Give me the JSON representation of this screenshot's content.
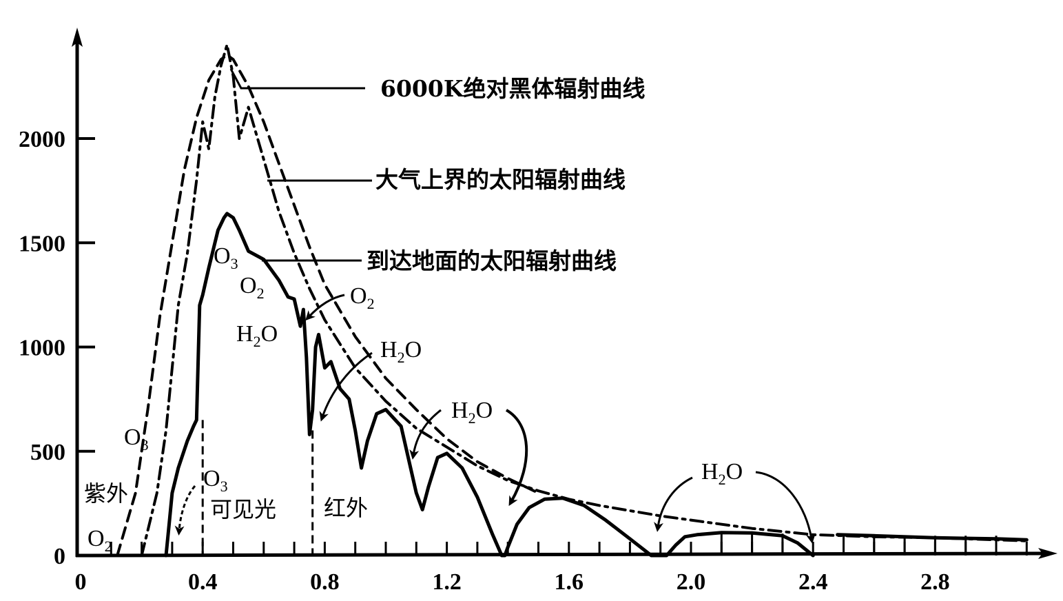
{
  "chart_data": {
    "type": "line",
    "title": "",
    "xlabel": "",
    "ylabel": "",
    "xlim": [
      0,
      3.2
    ],
    "ylim": [
      0,
      2400
    ],
    "grid": false,
    "x_ticks": [
      0,
      0.4,
      0.8,
      1.2,
      1.6,
      2.0,
      2.4,
      2.8
    ],
    "x_tick_labels": [
      "0",
      "0.4",
      "0.8",
      "1.2",
      "1.6",
      "2.0",
      "2.4",
      "2.8"
    ],
    "x_minor_tick_step": 0.1,
    "y_ticks": [
      0,
      500,
      1000,
      1500,
      2000
    ],
    "y_tick_labels": [
      "0",
      "500",
      "1000",
      "1500",
      "2000"
    ],
    "legend_position": "inline-right-labels",
    "series": [
      {
        "name": "6000K绝对黑体辐射曲线",
        "style": "dashed",
        "x": [
          0.12,
          0.18,
          0.22,
          0.26,
          0.3,
          0.34,
          0.38,
          0.42,
          0.46,
          0.48,
          0.5,
          0.55,
          0.6,
          0.65,
          0.7,
          0.75,
          0.8,
          0.9,
          1.0,
          1.1,
          1.2,
          1.3,
          1.4,
          1.5
        ],
        "y": [
          0,
          300,
          700,
          1150,
          1500,
          1850,
          2100,
          2280,
          2380,
          2400,
          2380,
          2250,
          2080,
          1880,
          1680,
          1480,
          1300,
          1050,
          850,
          700,
          560,
          450,
          370,
          300
        ]
      },
      {
        "name": "大气上界的太阳辐射曲线",
        "style": "dashdot",
        "x": [
          0.2,
          0.25,
          0.28,
          0.3,
          0.32,
          0.35,
          0.38,
          0.4,
          0.42,
          0.44,
          0.46,
          0.48,
          0.5,
          0.52,
          0.55,
          0.6,
          0.65,
          0.7,
          0.75,
          0.8,
          0.9,
          1.0,
          1.1,
          1.2,
          1.3,
          1.4,
          1.5,
          1.6,
          1.7,
          1.8,
          1.9,
          2.0,
          2.2,
          2.4,
          2.6,
          2.8,
          3.0,
          3.1
        ],
        "y": [
          0,
          300,
          600,
          900,
          1200,
          1450,
          1800,
          2080,
          1950,
          2200,
          2350,
          2450,
          2300,
          2000,
          2150,
          1900,
          1650,
          1450,
          1280,
          1130,
          900,
          740,
          610,
          520,
          430,
          360,
          310,
          270,
          240,
          215,
          190,
          170,
          130,
          100,
          90,
          85,
          75,
          70
        ]
      },
      {
        "name": "到达地面的太阳辐射曲线",
        "style": "solid",
        "x": [
          0.28,
          0.29,
          0.3,
          0.32,
          0.35,
          0.37,
          0.38,
          0.39,
          0.4,
          0.42,
          0.45,
          0.47,
          0.48,
          0.5,
          0.52,
          0.55,
          0.6,
          0.65,
          0.68,
          0.7,
          0.72,
          0.73,
          0.74,
          0.75,
          0.76,
          0.77,
          0.78,
          0.8,
          0.82,
          0.85,
          0.88,
          0.9,
          0.92,
          0.94,
          0.97,
          1.0,
          1.05,
          1.1,
          1.12,
          1.14,
          1.17,
          1.2,
          1.25,
          1.3,
          1.35,
          1.38,
          1.39,
          1.4,
          1.43,
          1.47,
          1.52,
          1.58,
          1.65,
          1.72,
          1.8,
          1.87,
          1.9,
          1.92,
          1.95,
          1.98,
          2.02,
          2.1,
          2.2,
          2.3,
          2.35,
          2.4
        ],
        "y": [
          0,
          150,
          300,
          420,
          550,
          620,
          650,
          1200,
          1250,
          1380,
          1560,
          1620,
          1640,
          1620,
          1560,
          1460,
          1420,
          1320,
          1240,
          1230,
          1100,
          1180,
          950,
          580,
          700,
          1000,
          1060,
          900,
          930,
          800,
          750,
          600,
          420,
          550,
          680,
          700,
          620,
          300,
          220,
          330,
          470,
          490,
          420,
          280,
          100,
          0,
          0,
          40,
          150,
          230,
          270,
          275,
          240,
          170,
          80,
          0,
          0,
          0,
          50,
          90,
          100,
          110,
          108,
          95,
          60,
          0
        ]
      },
      {
        "name": "到达地面的太阳辐射曲线 (2.5–3.1 band)",
        "style": "solid-hatched",
        "x": [
          2.48,
          2.6,
          2.8,
          3.0,
          3.1
        ],
        "y": [
          100,
          95,
          85,
          80,
          75
        ]
      }
    ],
    "annotations": [
      {
        "text": "6000K绝对黑体辐射曲线",
        "type": "legend-callout",
        "points_to_series": 0
      },
      {
        "text": "大气上界的太阳辐射曲线",
        "type": "legend-callout",
        "points_to_series": 1
      },
      {
        "text": "到达地面的太阳辐射曲线",
        "type": "legend-callout",
        "points_to_series": 2
      },
      {
        "text": "O3",
        "x": 0.48,
        "y": 1420,
        "type": "absorption"
      },
      {
        "text": "O2",
        "x": 0.58,
        "y": 1250,
        "type": "absorption"
      },
      {
        "text": "H2O",
        "x": 0.55,
        "y": 1020,
        "type": "absorption"
      },
      {
        "text": "O2",
        "x": 0.9,
        "y": 1230,
        "type": "absorption-arrow"
      },
      {
        "text": "H2O",
        "x": 1.05,
        "y": 980,
        "type": "absorption-arrow"
      },
      {
        "text": "H2O",
        "x": 1.35,
        "y": 680,
        "type": "absorption-arrow"
      },
      {
        "text": "H2O",
        "x": 2.1,
        "y": 380,
        "type": "absorption-arrow"
      },
      {
        "text": "O3",
        "x": 0.2,
        "y": 560,
        "type": "absorption"
      },
      {
        "text": "O3",
        "x": 0.42,
        "y": 350,
        "type": "absorption-arrow"
      },
      {
        "text": "O2",
        "x": 0.07,
        "y": 80,
        "type": "absorption"
      },
      {
        "text": "紫外",
        "x": 0.05,
        "y": 300,
        "type": "region"
      },
      {
        "text": "可见光",
        "x": 0.55,
        "y": 220,
        "type": "region"
      },
      {
        "text": "红外",
        "x": 0.88,
        "y": 220,
        "type": "region"
      }
    ],
    "region_dividers_x": [
      0.4,
      0.76
    ]
  },
  "labels": {
    "legend_blackbody": "6000K绝对黑体辐射曲线",
    "legend_toa": "大气上界的太阳辐射曲线",
    "legend_surface": "到达地面的太阳辐射曲线",
    "region_uv": "紫外",
    "region_visible": "可见光",
    "region_ir": "红外",
    "o3_peak": "O",
    "o3_peak_sub": "3",
    "o2_peak": "O",
    "o2_peak_sub": "2",
    "h2o_visible": "H",
    "h2o_visible_sub": "2",
    "h2o_visible_o": "O",
    "o2_arrow": "O",
    "o2_arrow_sub": "2",
    "h2o_arrow1": "H",
    "h2o_arrow1_sub": "2",
    "h2o_arrow1_o": "O",
    "h2o_arrow2": "H",
    "h2o_arrow2_sub": "2",
    "h2o_arrow2_o": "O",
    "h2o_arrow3": "H",
    "h2o_arrow3_sub": "2",
    "h2o_arrow3_o": "O",
    "o3_uv": "O",
    "o3_uv_sub": "3",
    "o3_vis": "O",
    "o3_vis_sub": "3",
    "o2_uv": "O",
    "o2_uv_sub": "2"
  }
}
